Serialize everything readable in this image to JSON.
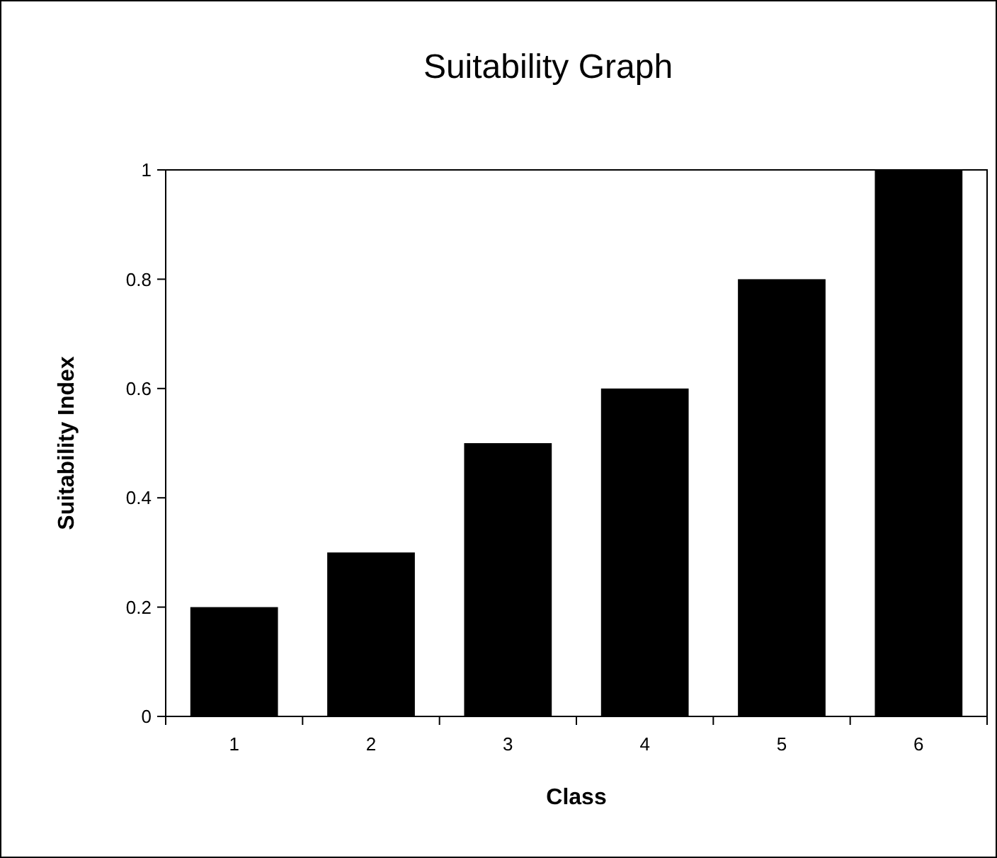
{
  "chart_data": {
    "type": "bar",
    "title": "Suitability Graph",
    "xlabel": "Class",
    "ylabel": "Suitability Index",
    "categories": [
      "1",
      "2",
      "3",
      "4",
      "5",
      "6"
    ],
    "values": [
      0.2,
      0.3,
      0.5,
      0.6,
      0.8,
      1
    ],
    "color": "#000000",
    "ylim": [
      0,
      1
    ],
    "yticks": [
      0,
      0.2,
      0.4,
      0.6,
      0.8,
      1
    ],
    "grid": false
  }
}
